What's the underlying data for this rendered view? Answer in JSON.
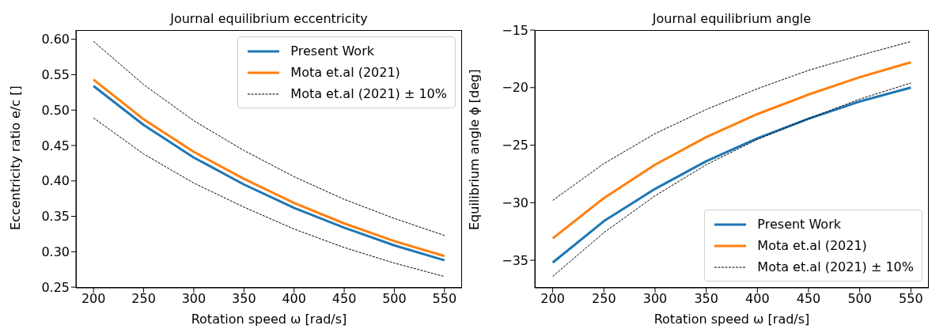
{
  "chart_data": [
    {
      "type": "line",
      "title": "Journal equilibrium eccentricity",
      "xlabel": "Rotation speed ω [rad/s]",
      "ylabel": "Eccentricity ratio e/c []",
      "x": [
        200,
        250,
        300,
        350,
        400,
        450,
        500,
        550
      ],
      "series": [
        {
          "name": "Present Work",
          "color": "#1f77b4",
          "values": [
            0.534,
            0.479,
            0.433,
            0.395,
            0.362,
            0.334,
            0.309,
            0.288
          ]
        },
        {
          "name": "Mota et.al (2021)",
          "color": "#ff7f0e",
          "values": [
            0.543,
            0.487,
            0.441,
            0.403,
            0.369,
            0.34,
            0.315,
            0.294
          ]
        },
        {
          "name": "Mota et.al (2021) ± 10%",
          "color": "#000000",
          "line_style": "dashed",
          "values": [
            0.597,
            0.536,
            0.485,
            0.443,
            0.406,
            0.374,
            0.347,
            0.323
          ]
        },
        {
          "color": "#000000",
          "line_style": "dashed",
          "values": [
            0.489,
            0.438,
            0.397,
            0.363,
            0.332,
            0.306,
            0.284,
            0.265
          ]
        }
      ],
      "xlim": [
        182.5,
        567.5
      ],
      "xticks": [
        200,
        250,
        300,
        350,
        400,
        450,
        500,
        550
      ],
      "ylim": [
        0.249,
        0.613
      ],
      "yticks": [
        0.25,
        {
          "value": 0.3,
          "label": "0.30"
        },
        0.35,
        {
          "value": 0.4,
          "label": "0.40"
        },
        0.45,
        {
          "value": 0.5,
          "label": "0.50"
        },
        0.55,
        {
          "value": 0.6,
          "label": "0.60"
        }
      ],
      "legend": "top right",
      "line_style": "solid",
      "marker": "none",
      "grid": false
    },
    {
      "type": "line",
      "title": "Journal equilibrium angle",
      "xlabel": "Rotation speed ω [rad/s]",
      "ylabel": "Equilibrium angle ϕ [deg]",
      "x": [
        200,
        250,
        300,
        350,
        400,
        450,
        500,
        550
      ],
      "series": [
        {
          "name": "Present Work",
          "color": "#1f77b4",
          "values": [
            -35.2,
            -31.6,
            -28.8,
            -26.4,
            -24.4,
            -22.7,
            -21.2,
            -20.0
          ]
        },
        {
          "name": "Mota et.al (2021)",
          "color": "#ff7f0e",
          "values": [
            -33.1,
            -29.6,
            -26.7,
            -24.3,
            -22.3,
            -20.6,
            -19.1,
            -17.8
          ]
        },
        {
          "name": "Mota et.al (2021) ± 10%",
          "color": "#000000",
          "line_style": "dashed",
          "values": [
            -29.8,
            -26.6,
            -24.0,
            -21.9,
            -20.1,
            -18.5,
            -17.2,
            -16.0
          ]
        },
        {
          "color": "#000000",
          "line_style": "dashed",
          "values": [
            -36.4,
            -32.6,
            -29.4,
            -26.7,
            -24.5,
            -22.7,
            -21.0,
            -19.6
          ]
        }
      ],
      "xlim": [
        182.5,
        567.5
      ],
      "xticks": [
        200,
        250,
        300,
        350,
        400,
        450,
        500,
        550
      ],
      "ylim": [
        -37.4,
        -15
      ],
      "yticks": [
        {
          "value": -35,
          "label": "−35"
        },
        {
          "value": -30,
          "label": "−30"
        },
        {
          "value": -25,
          "label": "−25"
        },
        {
          "value": -20,
          "label": "−20"
        },
        {
          "value": -15,
          "label": "−15"
        }
      ],
      "legend": "bottom right",
      "line_style": "solid",
      "marker": "none",
      "grid": false
    }
  ]
}
